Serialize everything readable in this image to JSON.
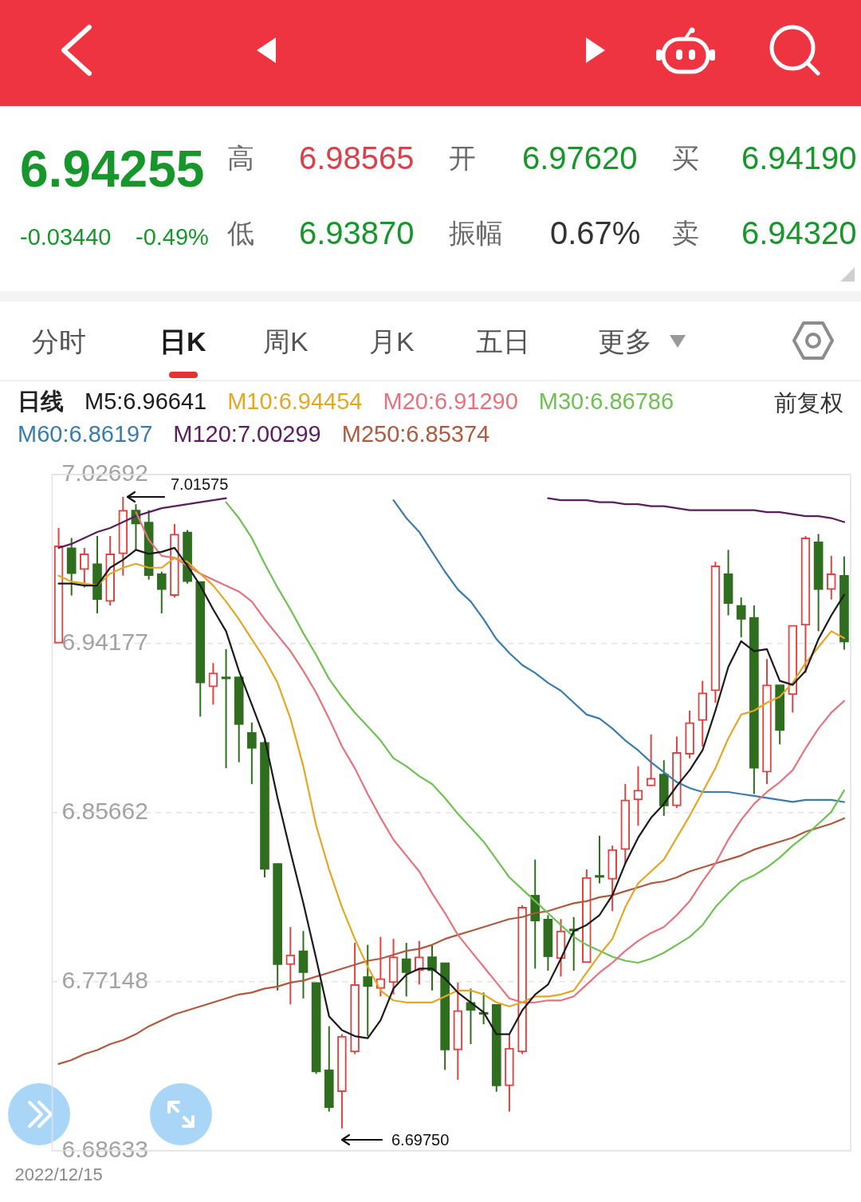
{
  "chart_data": {
    "type": "candlestick",
    "legend_title": "日线",
    "legend": "top",
    "grid": "y",
    "categories": [
      "2022/12/15",
      null,
      null,
      null,
      null,
      null,
      null,
      null,
      null,
      null,
      null,
      null,
      null,
      null,
      null,
      null,
      null,
      null,
      null,
      null,
      null,
      null,
      null,
      null,
      null,
      null,
      null,
      null,
      null,
      null,
      null,
      null,
      null,
      null,
      null,
      null,
      null,
      null,
      null,
      null,
      null,
      null,
      null,
      null,
      null,
      null,
      null,
      null,
      null,
      null,
      null,
      null,
      null,
      null,
      null,
      null,
      null,
      null,
      null,
      null,
      null,
      null
    ],
    "ohlc": [
      [
        6.942,
        7.0,
        6.942,
        6.991
      ],
      [
        6.99,
        6.995,
        6.966,
        6.977
      ],
      [
        6.979,
        6.99,
        6.97,
        6.987
      ],
      [
        6.982,
        6.996,
        6.957,
        6.964
      ],
      [
        6.963,
        6.996,
        6.961,
        6.987
      ],
      [
        6.987,
        7.01575,
        6.976,
        7.009
      ],
      [
        7.009,
        7.012,
        6.989,
        7.002
      ],
      [
        7.003,
        7.009,
        6.974,
        6.976
      ],
      [
        6.977,
        6.978,
        6.957,
        6.969
      ],
      [
        6.966,
        7.002,
        6.965,
        6.997
      ],
      [
        6.998,
        6.999,
        6.972,
        6.973
      ],
      [
        6.973,
        6.973,
        6.905,
        6.922
      ],
      [
        6.92,
        6.932,
        6.911,
        6.927
      ],
      [
        6.925,
        6.939,
        6.879,
        6.924
      ],
      [
        6.925,
        6.925,
        6.882,
        6.901
      ],
      [
        6.897,
        6.902,
        6.871,
        6.889
      ],
      [
        6.892,
        6.893,
        6.824,
        6.828
      ],
      [
        6.831,
        6.831,
        6.767,
        6.78
      ],
      [
        6.78,
        6.799,
        6.76,
        6.785
      ],
      [
        6.787,
        6.797,
        6.763,
        6.776
      ],
      [
        6.771,
        6.771,
        6.725,
        6.726
      ],
      [
        6.727,
        6.749,
        6.706,
        6.708
      ],
      [
        6.716,
        6.745,
        6.6975,
        6.744
      ],
      [
        6.736,
        6.791,
        6.735,
        6.77
      ],
      [
        6.774,
        6.79,
        6.744,
        6.769
      ],
      [
        6.768,
        6.794,
        6.764,
        6.773
      ],
      [
        6.771,
        6.793,
        6.765,
        6.784
      ],
      [
        6.783,
        6.791,
        6.764,
        6.776
      ],
      [
        6.777,
        6.792,
        6.77,
        6.784
      ],
      [
        6.784,
        6.79,
        6.767,
        6.777
      ],
      [
        6.781,
        6.781,
        6.727,
        6.737
      ],
      [
        6.737,
        6.771,
        6.722,
        6.757
      ],
      [
        6.761,
        6.768,
        6.74,
        6.757
      ],
      [
        6.756,
        6.766,
        6.75,
        6.755
      ],
      [
        6.76,
        6.76,
        6.716,
        6.719
      ],
      [
        6.719,
        6.745,
        6.706,
        6.738
      ],
      [
        6.736,
        6.81,
        6.735,
        6.809
      ],
      [
        6.815,
        6.833,
        6.778,
        6.802
      ],
      [
        6.803,
        6.805,
        6.777,
        6.784
      ],
      [
        6.783,
        6.803,
        6.774,
        6.797
      ],
      [
        6.798,
        6.804,
        6.777,
        6.797
      ],
      [
        6.781,
        6.828,
        6.781,
        6.824
      ],
      [
        6.825,
        6.845,
        6.821,
        6.824
      ],
      [
        6.823,
        6.84,
        6.807,
        6.838
      ],
      [
        6.838,
        6.871,
        6.831,
        6.863
      ],
      [
        6.863,
        6.88,
        6.85,
        6.868
      ],
      [
        6.87,
        6.896,
        6.87,
        6.874
      ],
      [
        6.876,
        6.883,
        6.855,
        6.86
      ],
      [
        6.86,
        6.895,
        6.859,
        6.887
      ],
      [
        6.886,
        6.908,
        6.884,
        6.902
      ],
      [
        6.903,
        6.923,
        6.89,
        6.917
      ],
      [
        6.918,
        6.983,
        6.912,
        6.981
      ],
      [
        6.977,
        6.989,
        6.956,
        6.962
      ],
      [
        6.961,
        6.965,
        6.945,
        6.954
      ],
      [
        6.955,
        6.961,
        6.866,
        6.879
      ],
      [
        6.877,
        6.934,
        6.871,
        6.921
      ],
      [
        6.921,
        6.921,
        6.891,
        6.898
      ],
      [
        6.916,
        6.951,
        6.907,
        6.951
      ],
      [
        6.951,
        6.996,
        6.927,
        6.995
      ],
      [
        6.993,
        6.997,
        6.948,
        6.969
      ],
      [
        6.969,
        6.986,
        6.964,
        6.977
      ],
      [
        6.9762,
        6.98565,
        6.9387,
        6.94255
      ]
    ],
    "colors": [
      "#e2413f",
      "#2f6d1f",
      "#e2413f",
      "#2f6d1f",
      "#e2413f",
      "#e2413f",
      "#2f6d1f",
      "#2f6d1f",
      "#2f6d1f",
      "#e2413f",
      "#2f6d1f",
      "#2f6d1f",
      "#e2413f",
      "#2f6d1f",
      "#2f6d1f",
      "#2f6d1f",
      "#2f6d1f",
      "#2f6d1f",
      "#e2413f",
      "#2f6d1f",
      "#2f6d1f",
      "#2f6d1f",
      "#e2413f",
      "#e2413f",
      "#2f6d1f",
      "#e2413f",
      "#e2413f",
      "#2f6d1f",
      "#e2413f",
      "#2f6d1f",
      "#2f6d1f",
      "#e2413f",
      "#2f6d1f",
      "#2f6d1f",
      "#2f6d1f",
      "#e2413f",
      "#e2413f",
      "#2f6d1f",
      "#2f6d1f",
      "#e2413f",
      "#2f6d1f",
      "#e2413f",
      "#2f6d1f",
      "#e2413f",
      "#e2413f",
      "#e2413f",
      "#e2413f",
      "#2f6d1f",
      "#e2413f",
      "#e2413f",
      "#e2413f",
      "#e2413f",
      "#2f6d1f",
      "#2f6d1f",
      "#2f6d1f",
      "#e2413f",
      "#2f6d1f",
      "#e2413f",
      "#e2413f",
      "#2f6d1f",
      "#e2413f",
      "#2f6d1f"
    ],
    "series": [
      {
        "type": "line",
        "name": "M5:6.96641",
        "color": "#1a1a1a",
        "values": [
          6.972,
          6.972,
          6.971,
          6.971,
          6.98,
          6.984,
          6.989,
          6.987,
          6.988,
          6.99,
          6.981,
          6.971,
          6.959,
          6.948,
          6.928,
          6.911,
          6.894,
          6.864,
          6.837,
          6.811,
          6.783,
          6.754,
          6.747,
          6.744,
          6.743,
          6.752,
          6.768,
          6.775,
          6.778,
          6.778,
          6.773,
          6.766,
          6.761,
          6.756,
          6.745,
          6.745,
          6.757,
          6.765,
          6.77,
          6.783,
          6.797,
          6.8,
          6.805,
          6.815,
          6.831,
          6.844,
          6.854,
          6.861,
          6.87,
          6.878,
          6.888,
          6.908,
          6.93,
          6.943,
          6.938,
          6.939,
          6.923,
          6.921,
          6.928,
          6.944,
          6.956,
          6.96641
        ]
      },
      {
        "type": "line",
        "name": "M10:6.94454",
        "color": "#e3a724",
        "values": [
          6.976,
          6.973,
          6.972,
          6.971,
          6.977,
          6.98,
          6.982,
          6.98,
          6.98,
          6.985,
          6.983,
          6.977,
          6.971,
          6.963,
          6.954,
          6.944,
          6.934,
          6.922,
          6.904,
          6.88,
          6.85,
          6.828,
          6.809,
          6.793,
          6.779,
          6.767,
          6.762,
          6.761,
          6.761,
          6.761,
          6.764,
          6.767,
          6.767,
          6.765,
          6.761,
          6.759,
          6.761,
          6.764,
          6.764,
          6.765,
          6.767,
          6.776,
          6.785,
          6.793,
          6.809,
          6.821,
          6.827,
          6.833,
          6.844,
          6.855,
          6.867,
          6.879,
          6.894,
          6.906,
          6.908,
          6.912,
          6.915,
          6.922,
          6.932,
          6.94,
          6.948,
          6.94454
        ]
      },
      {
        "type": "line",
        "name": "M20:6.91290",
        "color": "#e6727e",
        "values": [
          null,
          null,
          null,
          null,
          null,
          null,
          7.008,
          6.994,
          6.986,
          6.985,
          6.981,
          6.977,
          6.974,
          6.971,
          6.968,
          6.963,
          6.954,
          6.946,
          6.938,
          6.928,
          6.917,
          6.904,
          6.89,
          6.879,
          6.866,
          6.854,
          6.843,
          6.835,
          6.827,
          6.816,
          6.806,
          6.795,
          6.787,
          6.779,
          6.771,
          6.763,
          6.761,
          6.761,
          6.762,
          6.762,
          6.764,
          6.77,
          6.776,
          6.781,
          6.787,
          6.792,
          6.796,
          6.799,
          6.805,
          6.812,
          6.822,
          6.831,
          6.843,
          6.853,
          6.861,
          6.867,
          6.872,
          6.878,
          6.889,
          6.899,
          6.907,
          6.9129
        ]
      },
      {
        "type": "line",
        "name": "M30:6.86786",
        "color": "#6fc152",
        "values": [
          null,
          null,
          null,
          null,
          null,
          null,
          null,
          null,
          null,
          null,
          null,
          null,
          null,
          7.013,
          7.005,
          6.995,
          6.982,
          6.97,
          6.959,
          6.947,
          6.936,
          6.924,
          6.915,
          6.907,
          6.9,
          6.893,
          6.884,
          6.88,
          6.875,
          6.871,
          6.864,
          6.856,
          6.849,
          6.842,
          6.833,
          6.824,
          6.818,
          6.812,
          6.806,
          6.8,
          6.794,
          6.79,
          6.787,
          6.784,
          6.782,
          6.781,
          6.783,
          6.786,
          6.79,
          6.794,
          6.8,
          6.809,
          6.816,
          6.822,
          6.825,
          6.829,
          6.834,
          6.84,
          6.845,
          6.851,
          6.857,
          6.86786
        ]
      },
      {
        "type": "line",
        "name": "M60:6.86197",
        "color": "#3a7dab",
        "values": [
          null,
          null,
          null,
          null,
          null,
          null,
          null,
          null,
          null,
          null,
          null,
          null,
          null,
          null,
          null,
          null,
          null,
          null,
          null,
          null,
          null,
          null,
          null,
          null,
          null,
          null,
          7.014,
          7.005,
          6.998,
          6.988,
          6.978,
          6.969,
          6.963,
          6.954,
          6.944,
          6.937,
          6.931,
          6.927,
          6.922,
          6.918,
          6.912,
          6.906,
          6.904,
          6.899,
          6.893,
          6.888,
          6.882,
          6.877,
          6.872,
          6.869,
          6.867,
          6.867,
          6.867,
          6.866,
          6.865,
          6.864,
          6.863,
          6.862,
          6.863,
          6.863,
          6.863,
          6.86197
        ]
      },
      {
        "type": "line",
        "name": "M120:7.00299",
        "color": "#5a1e5d",
        "values": [
          6.99,
          6.992,
          6.995,
          6.998,
          7.0,
          7.003,
          7.006,
          7.008,
          7.01,
          7.011,
          7.012,
          7.013,
          7.014,
          7.015,
          null,
          null,
          null,
          null,
          null,
          null,
          null,
          null,
          null,
          null,
          null,
          null,
          null,
          null,
          null,
          null,
          null,
          null,
          null,
          null,
          null,
          null,
          null,
          null,
          7.015,
          7.014,
          7.014,
          7.014,
          7.013,
          7.013,
          7.012,
          7.012,
          7.011,
          7.011,
          7.01,
          7.009,
          7.009,
          7.009,
          7.009,
          7.009,
          7.009,
          7.008,
          7.008,
          7.007,
          7.006,
          7.006,
          7.005,
          7.00299
        ]
      },
      {
        "type": "line",
        "name": "M250:6.85374",
        "color": "#b1593f",
        "values": [
          6.73,
          6.732,
          6.735,
          6.737,
          6.74,
          6.742,
          6.745,
          6.749,
          6.752,
          6.755,
          6.757,
          6.759,
          6.761,
          6.763,
          6.765,
          6.766,
          6.768,
          6.769,
          6.771,
          6.772,
          6.774,
          6.776,
          6.778,
          6.78,
          6.782,
          6.783,
          6.785,
          6.787,
          6.788,
          6.79,
          6.793,
          6.795,
          6.797,
          6.799,
          6.801,
          6.803,
          6.804,
          6.806,
          6.807,
          6.809,
          6.811,
          6.812,
          6.814,
          6.815,
          6.817,
          6.819,
          6.821,
          6.822,
          6.824,
          6.827,
          6.829,
          6.831,
          6.833,
          6.835,
          6.838,
          6.84,
          6.842,
          6.844,
          6.847,
          6.849,
          6.851,
          6.85374
        ]
      }
    ],
    "ylim": [
      6.68633,
      7.02692
    ],
    "yticks": [
      6.68633,
      6.77148,
      6.85662,
      6.94177,
      7.02692
    ],
    "annotations": [
      "6.94255",
      "-0.03440",
      "-0.49%",
      "高",
      "6.98565",
      "低",
      "6.93870",
      "开",
      "6.97620",
      "振幅",
      "0.67%",
      "买",
      "6.94190",
      "卖",
      "6.94320",
      "分时",
      "日K",
      "周K",
      "月K",
      "五日",
      "更多",
      "前复权",
      "7.01575",
      "6.69750"
    ]
  }
}
